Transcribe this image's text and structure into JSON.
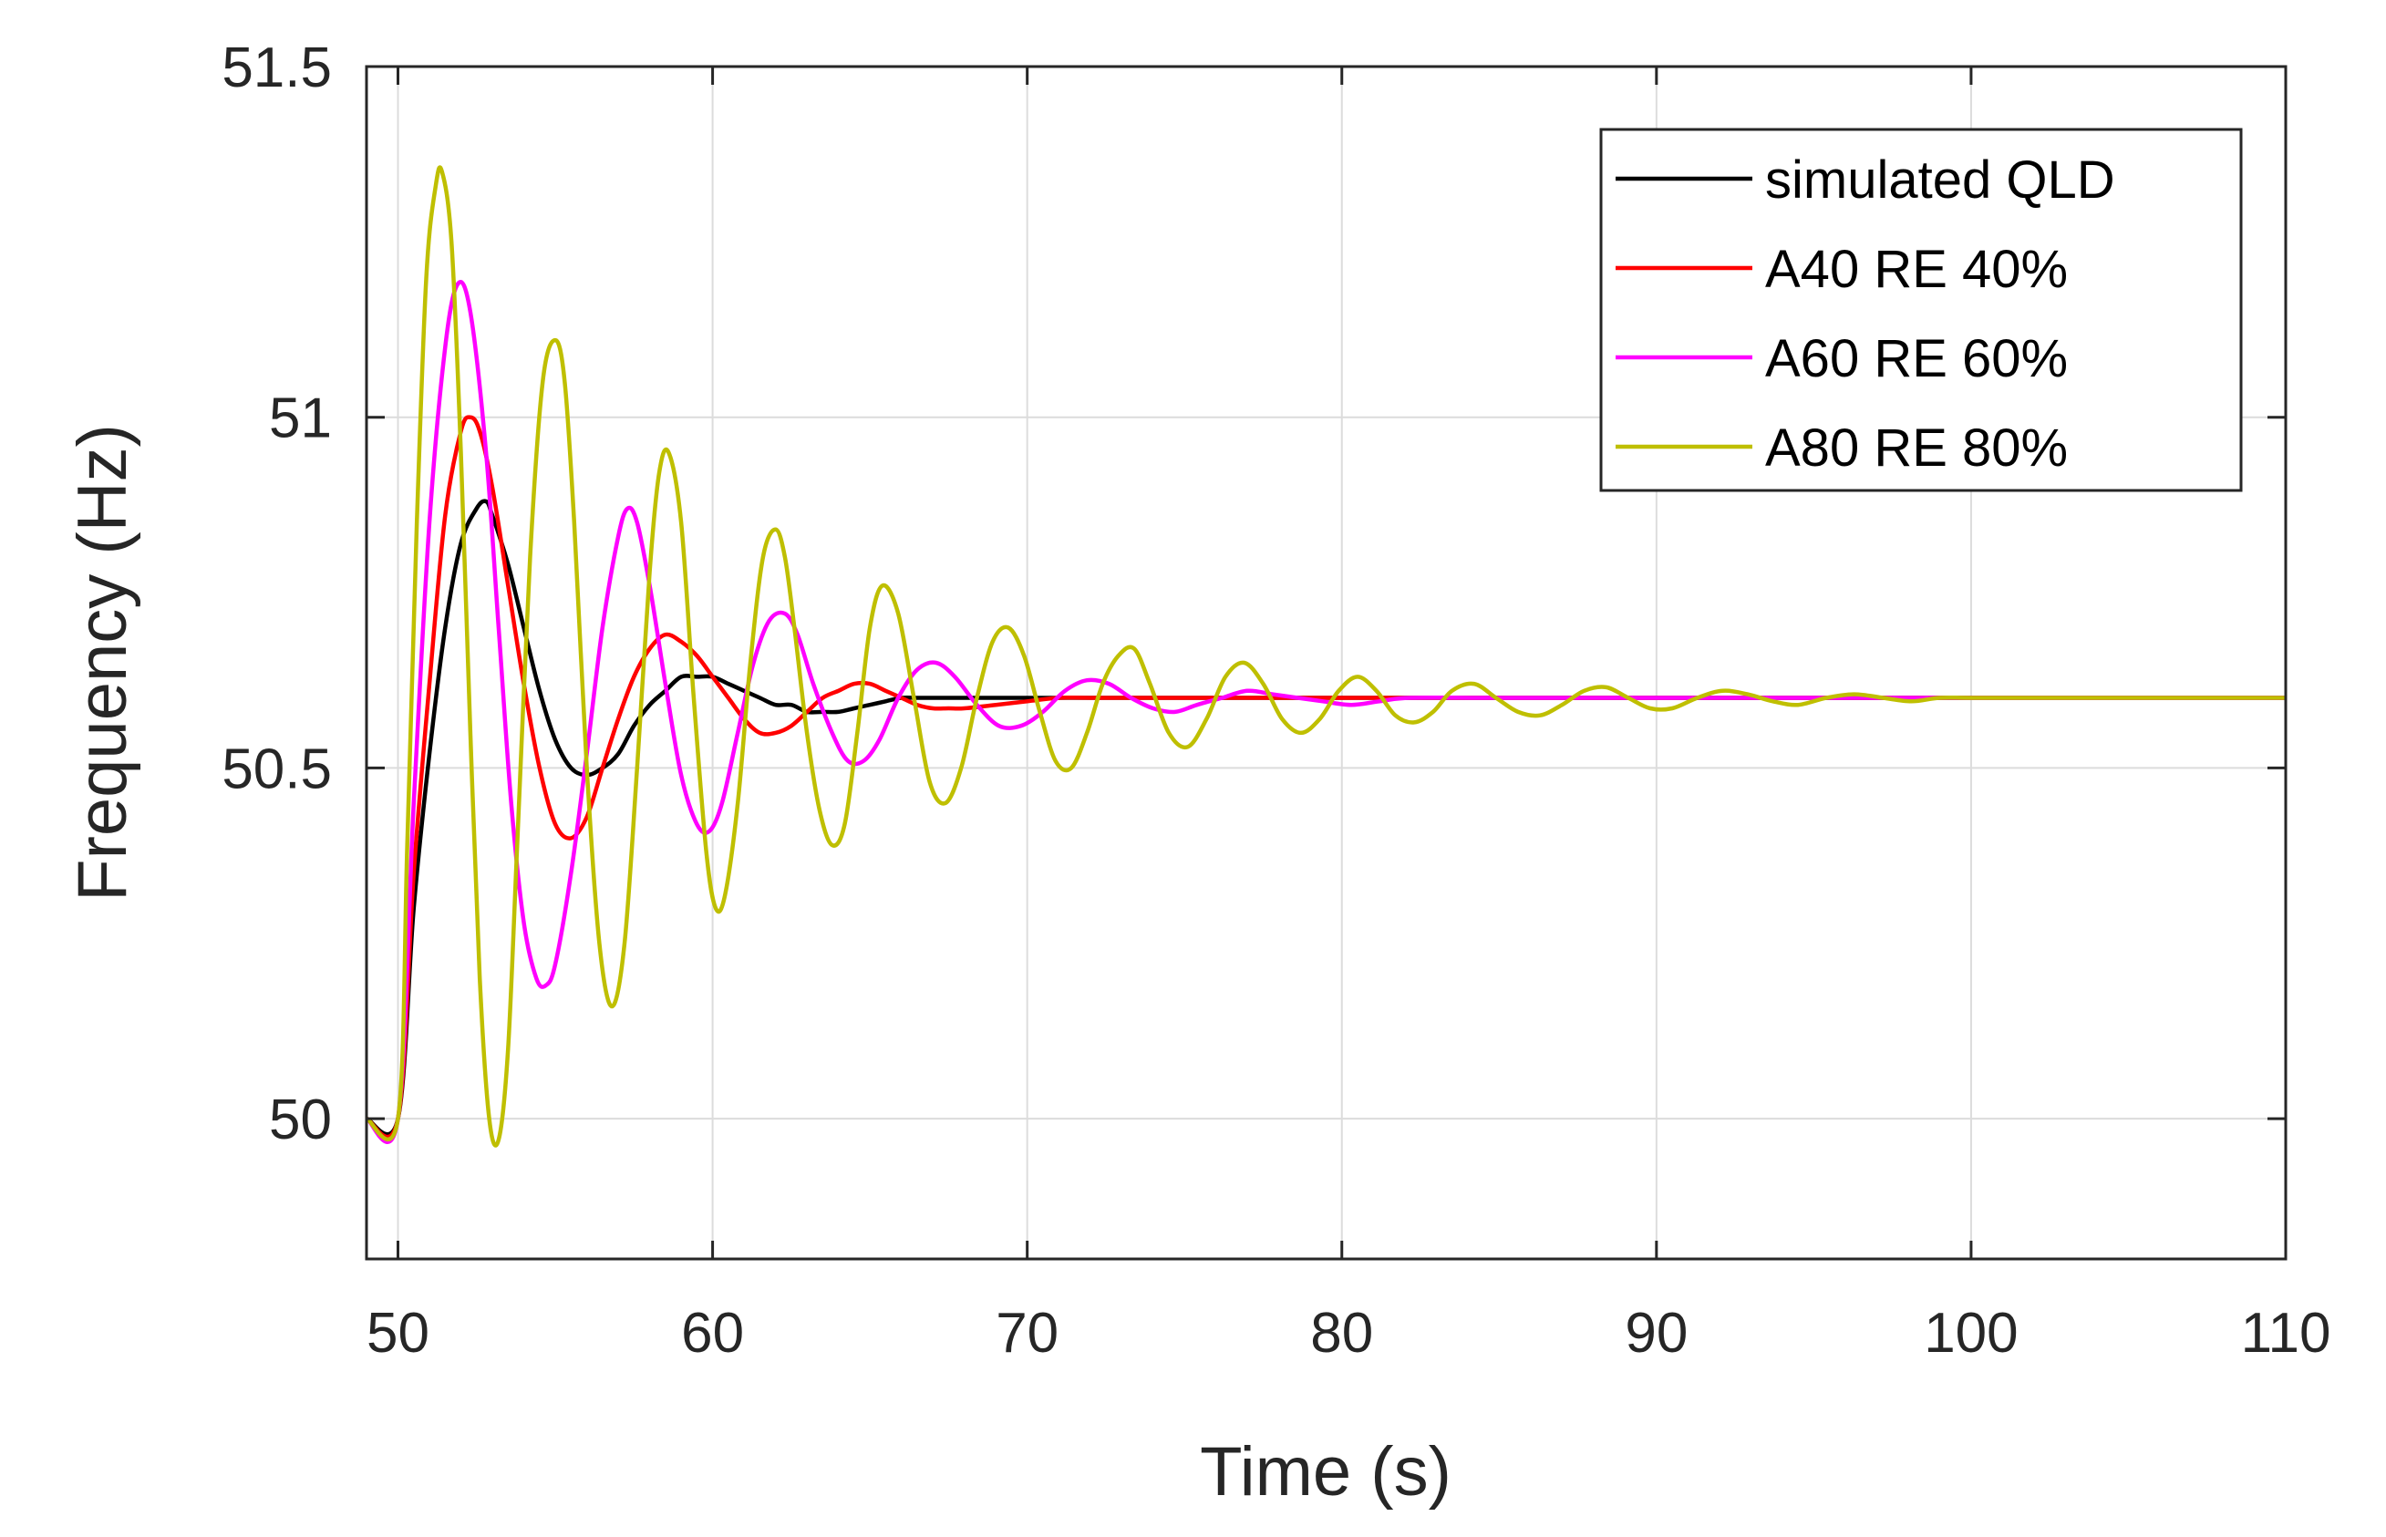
{
  "chart_data": {
    "type": "line",
    "title": "",
    "xlabel": "Time (s)",
    "ylabel": "Frequency (Hz)",
    "xlim": [
      49,
      110
    ],
    "ylim": [
      49.8,
      51.5
    ],
    "xticks": [
      50,
      60,
      70,
      80,
      90,
      100,
      110
    ],
    "xtick_labels": [
      "50",
      "60",
      "70",
      "80",
      "90",
      "100",
      "110"
    ],
    "yticks": [
      50,
      50.5,
      51,
      51.5
    ],
    "ytick_labels": [
      "50",
      "50.5",
      "51",
      "51.5"
    ],
    "grid": true,
    "legend_position": "top-right",
    "series": [
      {
        "name": "simulated QLD",
        "color": "#000000",
        "x": [
          49,
          50,
          50.5,
          51,
          51.5,
          52,
          52.5,
          52.8,
          53,
          53.5,
          54,
          54.5,
          55,
          55.5,
          56,
          56.5,
          57,
          57.5,
          58,
          58.5,
          59,
          59.5,
          60,
          60.5,
          61,
          61.5,
          62,
          62.5,
          63,
          63.5,
          64,
          64.5,
          65,
          65.5,
          66,
          66.5,
          67,
          68,
          69,
          70,
          72,
          75,
          80,
          90,
          100,
          110
        ],
        "y": [
          50.0,
          50.0,
          50.3,
          50.52,
          50.7,
          50.82,
          50.87,
          50.88,
          50.86,
          50.79,
          50.7,
          50.61,
          50.54,
          50.5,
          50.49,
          50.5,
          50.52,
          50.56,
          50.59,
          50.61,
          50.63,
          50.63,
          50.63,
          50.62,
          50.61,
          50.6,
          50.59,
          50.59,
          50.58,
          50.58,
          50.58,
          50.585,
          50.59,
          50.595,
          50.6,
          50.6,
          50.6,
          50.6,
          50.6,
          50.6,
          50.6,
          50.6,
          50.6,
          50.6,
          50.6,
          50.6
        ]
      },
      {
        "name": "A40 RE  40%",
        "color": "#ff0000",
        "x": [
          49,
          50,
          50.5,
          51,
          51.5,
          52,
          52.3,
          52.6,
          53,
          53.5,
          54,
          54.5,
          55,
          55.5,
          56,
          56.5,
          57,
          57.5,
          58,
          58.5,
          59,
          59.5,
          60,
          60.5,
          61,
          61.5,
          62,
          62.5,
          63,
          63.5,
          64,
          64.5,
          65,
          65.5,
          66,
          66.5,
          67,
          67.5,
          68,
          69,
          70,
          71,
          72,
          75,
          80,
          90,
          100,
          110
        ],
        "y": [
          50.0,
          50.0,
          50.35,
          50.62,
          50.86,
          50.98,
          51.0,
          50.98,
          50.9,
          50.76,
          50.62,
          50.5,
          50.42,
          50.4,
          50.43,
          50.5,
          50.57,
          50.63,
          50.67,
          50.69,
          50.68,
          50.66,
          50.63,
          50.6,
          50.57,
          50.55,
          50.55,
          50.56,
          50.58,
          50.6,
          50.61,
          50.62,
          50.62,
          50.61,
          50.6,
          50.59,
          50.585,
          50.585,
          50.585,
          50.59,
          50.595,
          50.6,
          50.6,
          50.6,
          50.6,
          50.6,
          50.6,
          50.6
        ]
      },
      {
        "name": "A60 RE  60%",
        "color": "#ff00ff",
        "x": [
          49,
          50,
          50.5,
          51,
          51.5,
          51.9,
          52.3,
          52.8,
          53.2,
          53.6,
          54,
          54.4,
          54.7,
          55,
          55.5,
          56,
          56.5,
          57,
          57.3,
          57.6,
          58,
          58.5,
          59,
          59.5,
          59.9,
          60.3,
          60.8,
          61.3,
          61.8,
          62.3,
          62.7,
          63.2,
          63.8,
          64.3,
          64.8,
          65.3,
          65.9,
          66.5,
          67.1,
          67.7,
          68.4,
          69.1,
          69.8,
          70.5,
          71.2,
          71.9,
          72.6,
          73.3,
          74.0,
          74.7,
          75.4,
          76.2,
          77.0,
          77.8,
          78.6,
          79.4,
          80.3,
          81.2,
          82.2,
          85,
          90,
          100,
          110
        ],
        "y": [
          50.0,
          50.0,
          50.45,
          50.85,
          51.1,
          51.19,
          51.15,
          50.95,
          50.7,
          50.45,
          50.28,
          50.2,
          50.19,
          50.22,
          50.35,
          50.52,
          50.7,
          50.83,
          50.87,
          50.85,
          50.76,
          50.62,
          50.49,
          50.42,
          50.41,
          50.45,
          50.55,
          50.65,
          50.71,
          50.72,
          50.69,
          50.62,
          50.55,
          50.51,
          50.51,
          50.54,
          50.6,
          50.64,
          50.65,
          50.63,
          50.59,
          50.56,
          50.56,
          50.58,
          50.61,
          50.625,
          50.62,
          50.6,
          50.585,
          50.58,
          50.59,
          50.6,
          50.61,
          50.605,
          50.6,
          50.595,
          50.59,
          50.595,
          50.6,
          50.6,
          50.6,
          50.6,
          50.6
        ]
      },
      {
        "name": "A80 RE  80%",
        "color": "#bfbf00",
        "x": [
          49,
          50,
          50.3,
          50.6,
          50.9,
          51.2,
          51.4,
          51.7,
          52.0,
          52.3,
          52.6,
          52.9,
          53.2,
          53.5,
          53.8,
          54.2,
          54.6,
          55.0,
          55.3,
          55.6,
          56.0,
          56.4,
          56.8,
          57.2,
          57.6,
          58.0,
          58.3,
          58.6,
          59.0,
          59.4,
          59.8,
          60.1,
          60.4,
          60.8,
          61.2,
          61.6,
          62.0,
          62.3,
          62.6,
          63.0,
          63.4,
          63.8,
          64.2,
          64.6,
          65.0,
          65.4,
          65.9,
          66.4,
          66.9,
          67.4,
          67.9,
          68.4,
          68.9,
          69.4,
          69.9,
          70.4,
          70.9,
          71.4,
          71.9,
          72.4,
          72.9,
          73.4,
          73.9,
          74.5,
          75.1,
          75.7,
          76.3,
          76.9,
          77.5,
          78.1,
          78.7,
          79.3,
          79.9,
          80.5,
          81.1,
          81.7,
          82.3,
          82.9,
          83.5,
          84.2,
          84.9,
          85.6,
          86.3,
          87.0,
          87.7,
          88.4,
          89.1,
          89.8,
          90.5,
          91.3,
          92.1,
          92.9,
          93.7,
          94.5,
          95.4,
          96.3,
          97.2,
          98.1,
          99.0,
          100,
          102,
          105,
          110
        ],
        "y": [
          50.0,
          50.0,
          50.4,
          50.85,
          51.2,
          51.33,
          51.35,
          51.25,
          50.95,
          50.55,
          50.2,
          50.0,
          49.97,
          50.1,
          50.4,
          50.8,
          51.05,
          51.11,
          51.05,
          50.85,
          50.5,
          50.25,
          50.16,
          50.25,
          50.5,
          50.78,
          50.92,
          50.95,
          50.85,
          50.6,
          50.38,
          50.3,
          50.32,
          50.45,
          50.65,
          50.8,
          50.84,
          50.8,
          50.7,
          50.55,
          50.44,
          50.39,
          50.42,
          50.55,
          50.7,
          50.76,
          50.72,
          50.6,
          50.48,
          50.45,
          50.5,
          50.6,
          50.68,
          50.7,
          50.66,
          50.58,
          50.51,
          50.5,
          50.55,
          50.62,
          50.66,
          50.67,
          50.62,
          50.55,
          50.53,
          50.57,
          50.63,
          50.65,
          50.62,
          50.57,
          50.55,
          50.57,
          50.61,
          50.63,
          50.61,
          50.575,
          50.565,
          50.58,
          50.61,
          50.62,
          50.6,
          50.58,
          50.575,
          50.59,
          50.61,
          50.615,
          50.6,
          50.585,
          50.585,
          50.6,
          50.61,
          50.605,
          50.595,
          50.59,
          50.6,
          50.605,
          50.6,
          50.595,
          50.6,
          50.6,
          50.6,
          50.6,
          50.6
        ]
      }
    ]
  }
}
